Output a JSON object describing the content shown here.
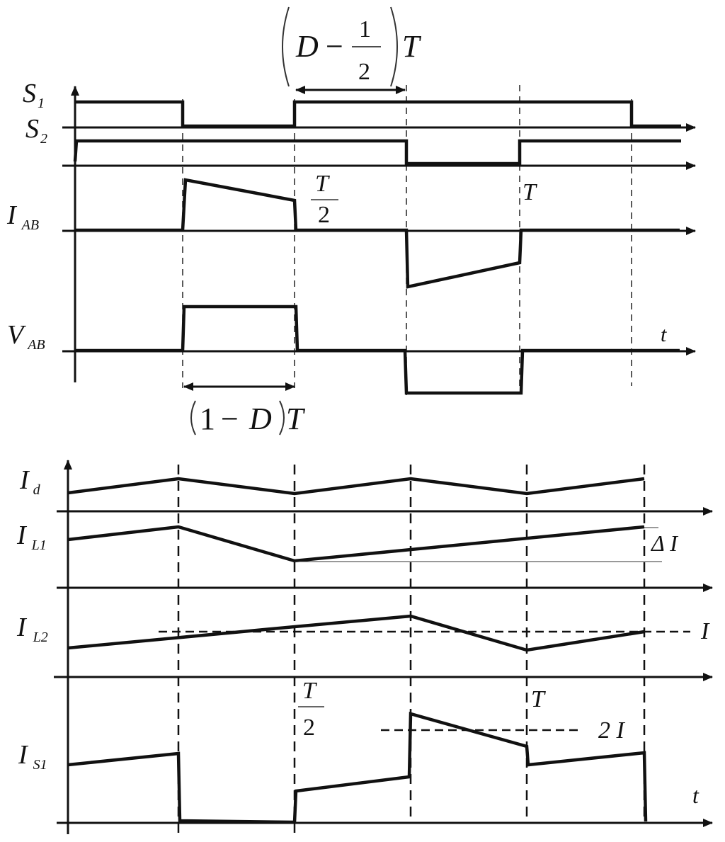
{
  "top": {
    "signals": {
      "s1": {
        "main": "S",
        "sub": "1"
      },
      "s2": {
        "main": "S",
        "sub": "2"
      },
      "iab": {
        "main": "I",
        "sub": "AB"
      },
      "vab": {
        "main": "V",
        "sub": "AB"
      }
    },
    "half_period": {
      "num": "T",
      "den": "2"
    },
    "period": "T",
    "time_axis": "t",
    "top_interval": {
      "D": "D",
      "minus": "−",
      "num": "1",
      "den": "2",
      "T": "T"
    },
    "bottom_interval": {
      "one": "1",
      "minus": "−",
      "D": "D",
      "T": "T"
    }
  },
  "bottom": {
    "signals": {
      "id": {
        "main": "I",
        "sub": "d"
      },
      "il1": {
        "main": "I",
        "sub": "L1"
      },
      "il2": {
        "main": "I",
        "sub": "L2"
      },
      "is1": {
        "main": "I",
        "sub": "S1"
      }
    },
    "delta_i": "Δ I",
    "i_level": "I",
    "two_i_level": "2 I",
    "half_period": {
      "num": "T",
      "den": "2"
    },
    "period": "T",
    "time_axis": "t"
  }
}
